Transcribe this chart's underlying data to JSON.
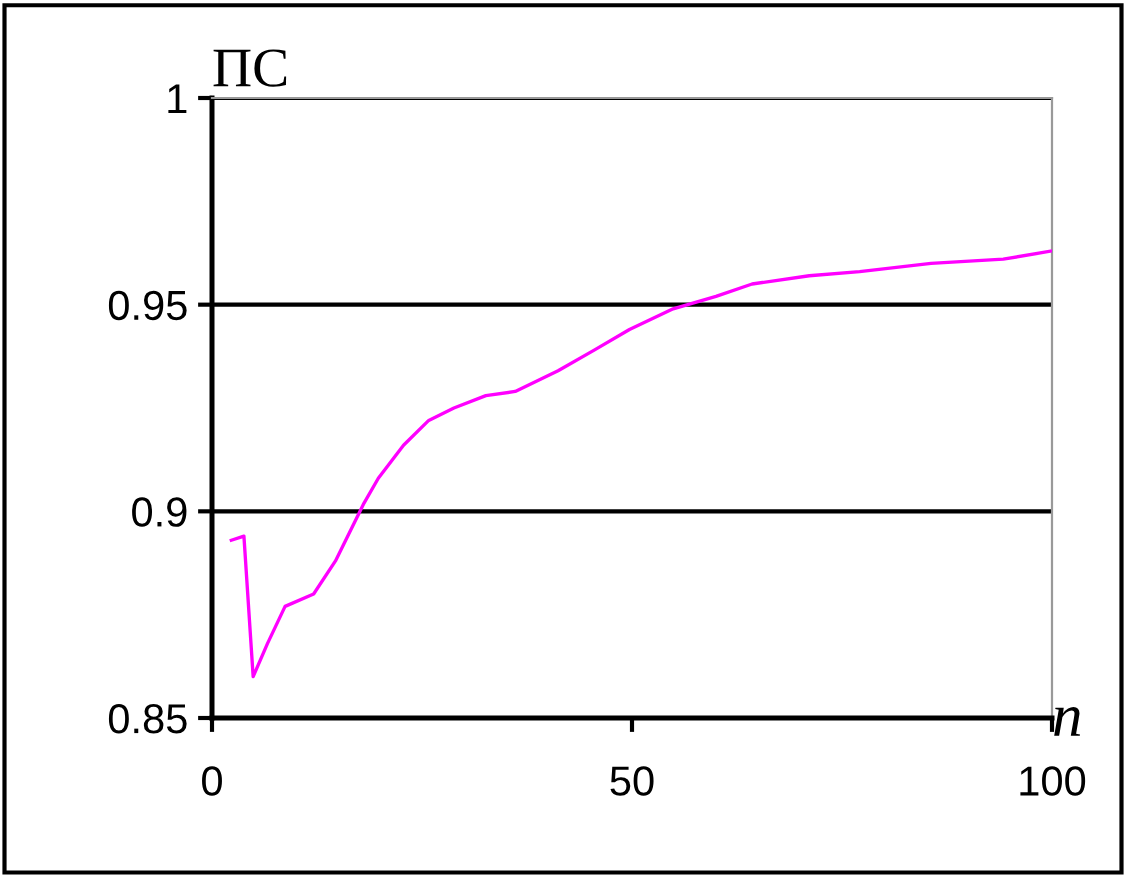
{
  "chart_data": {
    "type": "line",
    "xlabel": "n",
    "ylabel": "ПС",
    "x": [
      2.3,
      3.8,
      4.9,
      6.6,
      8.7,
      12.1,
      14.7,
      18.1,
      19.8,
      22.8,
      25.8,
      28.8,
      32.6,
      36.1,
      41.2,
      45.5,
      49.7,
      54.9,
      60.0,
      64.3,
      71.1,
      77.1,
      85.6,
      94.2,
      100
    ],
    "series": [
      {
        "color": "#ff00ff",
        "values": [
          0.893,
          0.894,
          0.86,
          0.868,
          0.877,
          0.88,
          0.888,
          0.902,
          0.908,
          0.916,
          0.922,
          0.925,
          0.928,
          0.929,
          0.934,
          0.939,
          0.944,
          0.949,
          0.952,
          0.955,
          0.957,
          0.958,
          0.96,
          0.961,
          0.963
        ]
      }
    ],
    "xlim": [
      0,
      100
    ],
    "ylim": [
      0.85,
      1
    ],
    "xticks": [
      0,
      50,
      100
    ],
    "yticks": [
      0.85,
      0.9,
      0.95,
      1
    ],
    "grid": "y",
    "legend": false,
    "marker": "none",
    "line_style": "solid"
  }
}
